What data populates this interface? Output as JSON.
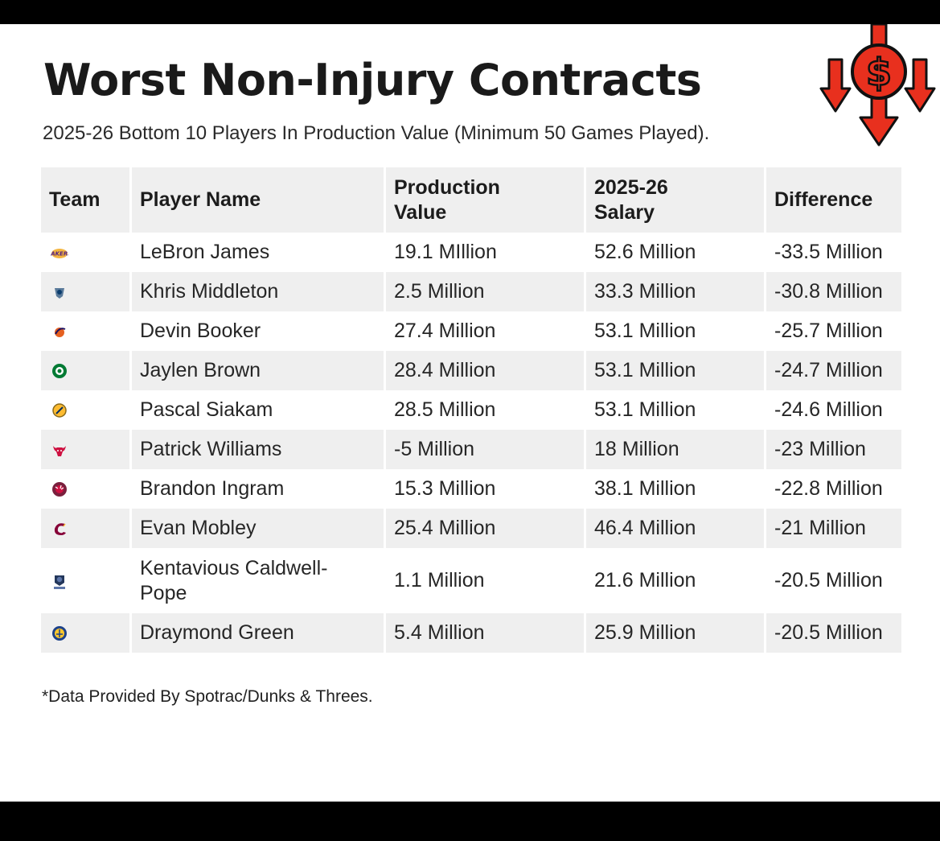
{
  "title": "Worst Non-Injury Contracts",
  "subtitle": "2025-26 Bottom 10 Players In Production Value (Minimum 50 Games Played).",
  "footnote": "*Data Provided By Spotrac/Dunks & Threes.",
  "logo_icon": "dollar-down-arrows-icon",
  "colors": {
    "logo_red": "#e8301e",
    "header_bg": "#efefef",
    "stripe_bg": "#efefef",
    "text": "#1a1a1a"
  },
  "chart_data": {
    "type": "table",
    "columns": [
      "Team",
      "Player Name",
      "Production\nValue",
      "2025-26\nSalary",
      "Difference"
    ],
    "rows": [
      {
        "team_icon": "lakers-logo-icon",
        "player": "LeBron James",
        "production": "19.1 MIllion",
        "salary": "52.6 Million",
        "difference": "-33.5 Million"
      },
      {
        "team_icon": "mavericks-logo-icon",
        "player": "Khris Middleton",
        "production": "2.5 Million",
        "salary": "33.3 Million",
        "difference": "-30.8 Million"
      },
      {
        "team_icon": "suns-logo-icon",
        "player": "Devin Booker",
        "production": "27.4 Million",
        "salary": "53.1 Million",
        "difference": "-25.7 Million"
      },
      {
        "team_icon": "celtics-logo-icon",
        "player": "Jaylen Brown",
        "production": "28.4 Million",
        "salary": "53.1 Million",
        "difference": "-24.7 Million"
      },
      {
        "team_icon": "pacers-logo-icon",
        "player": "Pascal Siakam",
        "production": "28.5 Million",
        "salary": "53.1 Million",
        "difference": "-24.6 Million"
      },
      {
        "team_icon": "bulls-logo-icon",
        "player": "Patrick Williams",
        "production": "-5 Million",
        "salary": "18 Million",
        "difference": "-23 Million"
      },
      {
        "team_icon": "raptors-logo-icon",
        "player": "Brandon Ingram",
        "production": "15.3 Million",
        "salary": "38.1 Million",
        "difference": "-22.8 Million"
      },
      {
        "team_icon": "cavaliers-logo-icon",
        "player": "Evan Mobley",
        "production": "25.4 Million",
        "salary": "46.4 Million",
        "difference": "-21 Million"
      },
      {
        "team_icon": "grizzlies-logo-icon",
        "player": "Kentavious Caldwell-\nPope",
        "production": "1.1 Million",
        "salary": "21.6 Million",
        "difference": "-20.5 Million"
      },
      {
        "team_icon": "warriors-logo-icon",
        "player": "Draymond Green",
        "production": "5.4 Million",
        "salary": "25.9 Million",
        "difference": "-20.5 Million"
      }
    ]
  }
}
